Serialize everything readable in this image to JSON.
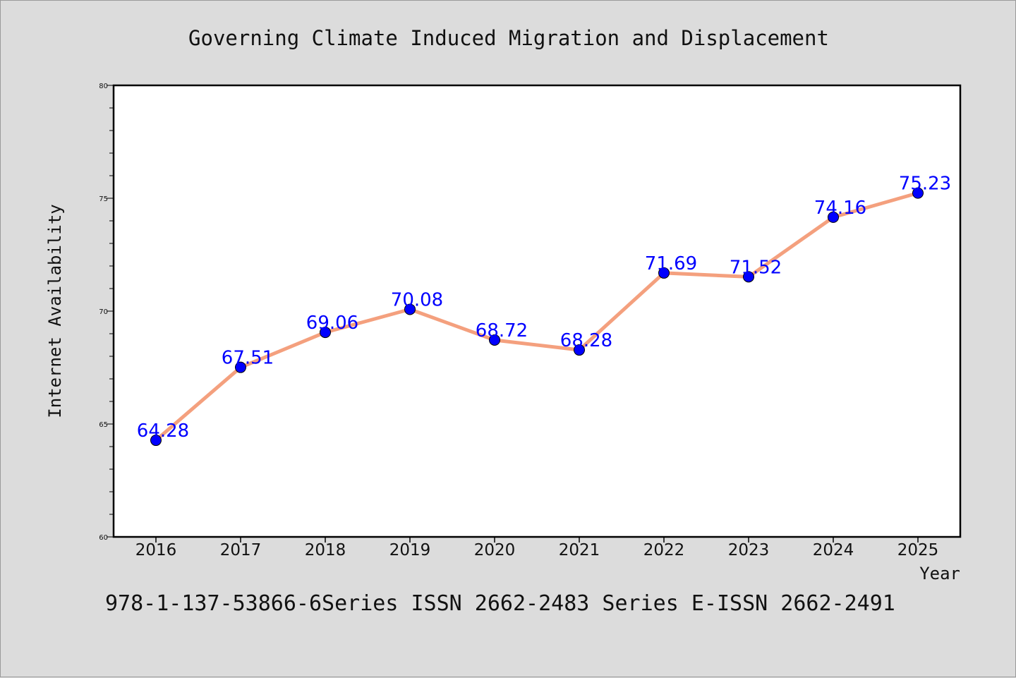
{
  "chart_data": {
    "type": "line",
    "title": "Governing Climate Induced Migration and Displacement",
    "footer": "978-1-137-53866-6Series ISSN 2662-2483 Series E-ISSN 2662-2491",
    "xlabel": "Year",
    "ylabel": "Internet Availability",
    "categories": [
      "2016",
      "2017",
      "2018",
      "2019",
      "2020",
      "2021",
      "2022",
      "2023",
      "2024",
      "2025"
    ],
    "values": [
      64.28,
      67.51,
      69.06,
      70.08,
      68.72,
      68.28,
      71.69,
      71.52,
      74.16,
      75.23
    ],
    "data_labels": [
      "64.28",
      "67.51",
      "69.06",
      "70.08",
      "68.72",
      "68.28",
      "71.69",
      "71.52",
      "74.16",
      "75.23"
    ],
    "ylim": [
      60,
      80
    ],
    "yticks": [
      "60",
      "65",
      "70",
      "75",
      "80"
    ],
    "grid": false,
    "colors": {
      "line": "#f4a07e",
      "marker": "#0000ff",
      "data_label": "#0000ff",
      "background": "#dcdcdc",
      "plot_background": "#ffffff"
    }
  }
}
